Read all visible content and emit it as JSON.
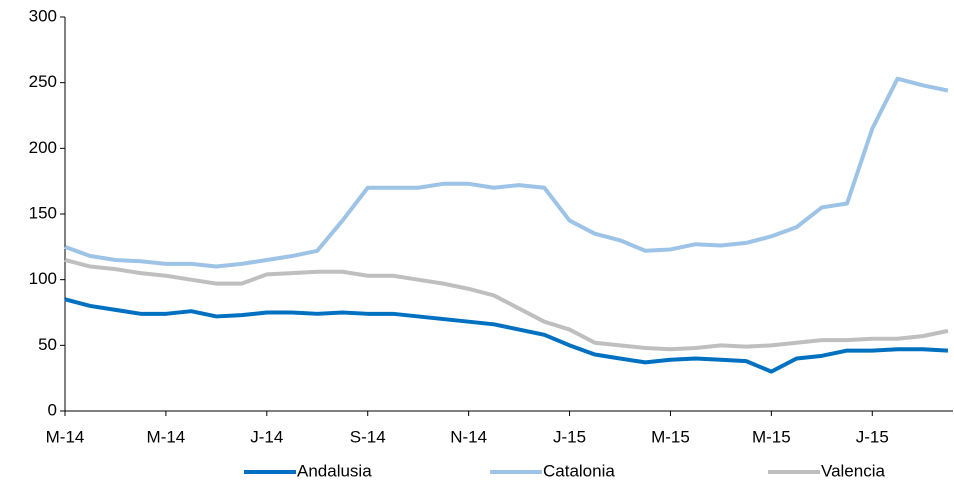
{
  "chart_data": {
    "type": "line",
    "x": [
      0,
      0.5,
      1,
      1.5,
      2,
      2.5,
      3,
      3.5,
      4,
      4.5,
      5,
      5.5,
      6,
      6.5,
      7,
      7.5,
      8,
      8.5,
      9,
      9.5,
      10,
      10.5,
      11,
      11.5,
      12,
      12.5,
      13,
      13.5,
      14,
      14.5,
      15,
      15.5,
      16,
      16.5,
      17,
      17.5
    ],
    "series": [
      {
        "name": "Andalusia",
        "color": "#0070c0",
        "values": [
          85,
          80,
          77,
          74,
          74,
          76,
          72,
          73,
          75,
          75,
          74,
          75,
          74,
          74,
          72,
          70,
          68,
          66,
          62,
          58,
          50,
          43,
          40,
          37,
          39,
          40,
          39,
          38,
          30,
          40,
          42,
          46,
          46,
          47,
          47,
          46
        ]
      },
      {
        "name": "Catalonia",
        "color": "#9dc3e6",
        "values": [
          125,
          118,
          115,
          114,
          112,
          112,
          110,
          112,
          115,
          118,
          122,
          145,
          170,
          170,
          170,
          173,
          173,
          170,
          172,
          170,
          145,
          135,
          130,
          122,
          123,
          127,
          126,
          128,
          133,
          140,
          155,
          158,
          215,
          253,
          248,
          244
        ]
      },
      {
        "name": "Valencia",
        "color": "#bfbfbf",
        "values": [
          115,
          110,
          108,
          105,
          103,
          100,
          97,
          97,
          104,
          105,
          106,
          106,
          103,
          103,
          100,
          97,
          93,
          88,
          78,
          68,
          62,
          52,
          50,
          48,
          47,
          48,
          50,
          49,
          50,
          52,
          54,
          54,
          55,
          55,
          57,
          61
        ]
      }
    ],
    "xlim": [
      0,
      17.6
    ],
    "xticks": [
      {
        "value": 0,
        "label": "M-14"
      },
      {
        "value": 2,
        "label": "M-14"
      },
      {
        "value": 4,
        "label": "J-14"
      },
      {
        "value": 6,
        "label": "S-14"
      },
      {
        "value": 8,
        "label": "N-14"
      },
      {
        "value": 10,
        "label": "J-15"
      },
      {
        "value": 12,
        "label": "M-15"
      },
      {
        "value": 14,
        "label": "M-15"
      },
      {
        "value": 16,
        "label": "J-15"
      }
    ],
    "ylim": [
      0,
      300
    ],
    "yticks": [
      0,
      50,
      100,
      150,
      200,
      250,
      300
    ],
    "grid": false,
    "legend": "bottom"
  }
}
